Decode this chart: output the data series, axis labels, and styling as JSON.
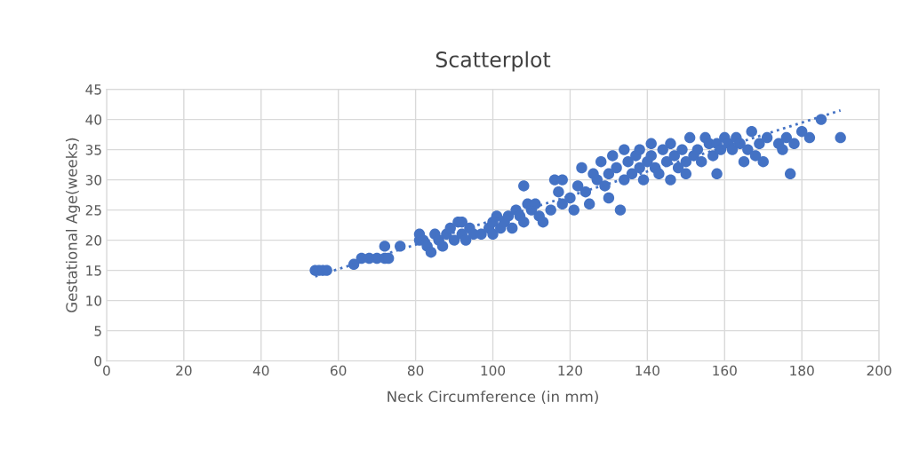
{
  "chart_data": {
    "type": "scatter",
    "title": "Scatterplot",
    "xlabel": "Neck Circumference (in mm)",
    "ylabel": "Gestational Age(weeks)",
    "xlim": [
      0,
      200
    ],
    "xticks": [
      0,
      20,
      40,
      60,
      80,
      100,
      120,
      140,
      160,
      180,
      200
    ],
    "ylim": [
      0,
      45
    ],
    "yticks": [
      0,
      5,
      10,
      15,
      20,
      25,
      30,
      35,
      40,
      45
    ],
    "grid": true,
    "marker": "circle",
    "series": [
      {
        "color": "#4472c4",
        "x": [
          54,
          55,
          56,
          57,
          64,
          66,
          68,
          70,
          72,
          72,
          73,
          76,
          81,
          81,
          82,
          83,
          84,
          85,
          86,
          87,
          88,
          89,
          90,
          91,
          92,
          92,
          93,
          94,
          95,
          97,
          99,
          100,
          100,
          101,
          102,
          103,
          104,
          105,
          106,
          107,
          108,
          108,
          109,
          110,
          111,
          112,
          113,
          115,
          116,
          117,
          118,
          118,
          120,
          121,
          122,
          123,
          124,
          125,
          126,
          127,
          128,
          129,
          130,
          130,
          131,
          132,
          133,
          134,
          134,
          135,
          136,
          137,
          138,
          138,
          139,
          140,
          141,
          141,
          142,
          143,
          144,
          145,
          146,
          146,
          147,
          148,
          149,
          150,
          150,
          151,
          152,
          153,
          154,
          155,
          156,
          157,
          158,
          158,
          159,
          160,
          161,
          162,
          163,
          164,
          165,
          166,
          167,
          168,
          169,
          170,
          171,
          174,
          175,
          176,
          177,
          178,
          180,
          182,
          185,
          190
        ],
        "values": [
          15,
          15,
          15,
          15,
          16,
          17,
          17,
          17,
          17,
          19,
          17,
          19,
          20,
          21,
          20,
          19,
          18,
          21,
          20,
          19,
          21,
          22,
          20,
          23,
          23,
          21,
          20,
          22,
          21,
          21,
          22,
          23,
          21,
          24,
          22,
          23,
          24,
          22,
          25,
          24,
          29,
          23,
          26,
          25,
          26,
          24,
          23,
          25,
          30,
          28,
          30,
          26,
          27,
          25,
          29,
          32,
          28,
          26,
          31,
          30,
          33,
          29,
          31,
          27,
          34,
          32,
          25,
          35,
          30,
          33,
          31,
          34,
          32,
          35,
          30,
          33,
          34,
          36,
          32,
          31,
          35,
          33,
          36,
          30,
          34,
          32,
          35,
          33,
          31,
          37,
          34,
          35,
          33,
          37,
          36,
          34,
          36,
          31,
          35,
          37,
          36,
          35,
          37,
          36,
          33,
          35,
          38,
          34,
          36,
          33,
          37,
          36,
          35,
          37,
          31,
          36,
          38,
          37,
          40,
          37
        ]
      },
      {
        "type": "line",
        "color": "#4472c4",
        "line_style": "dotted",
        "marker": "none",
        "x": [
          54,
          190
        ],
        "values": [
          14,
          41.5
        ]
      }
    ]
  }
}
